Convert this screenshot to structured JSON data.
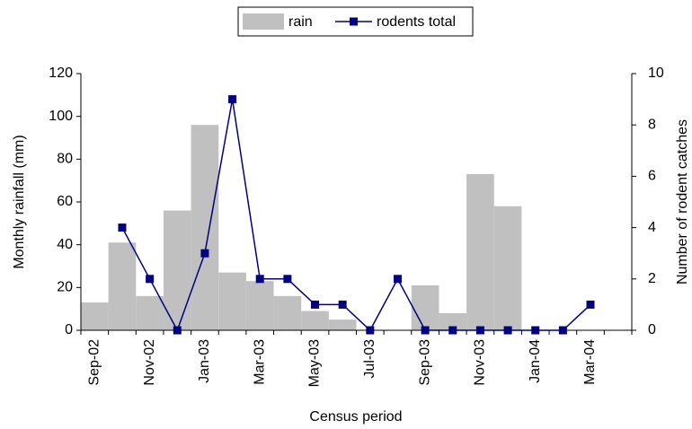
{
  "chart_data": {
    "type": "bar-line",
    "x_label": "Census period",
    "y_label": "Monthly rainfall (mm)",
    "y2_label": "Number of rodent catches",
    "categories": [
      "Sep-02",
      null,
      "Nov-02",
      null,
      "Jan-03",
      null,
      "Mar-03",
      null,
      "May-03",
      null,
      "Jul-03",
      null,
      "Sep-03",
      null,
      "Nov-03",
      null,
      "Jan-04",
      null,
      "Mar-04",
      null
    ],
    "series": [
      {
        "name": "rain",
        "type": "bar",
        "color": "#c0c0c0",
        "values": [
          13,
          41,
          16,
          56,
          96,
          27,
          23,
          16,
          9,
          5,
          null,
          null,
          21,
          8,
          73,
          58,
          null,
          null,
          null,
          null
        ]
      },
      {
        "name": "rodents total",
        "type": "line",
        "axis": "y2",
        "color": "#000080",
        "values": [
          null,
          4,
          2,
          0,
          3,
          9,
          2,
          2,
          1,
          1,
          0,
          2,
          0,
          0,
          0,
          0,
          0,
          0,
          1,
          null
        ]
      }
    ],
    "ylim": [
      0,
      120
    ],
    "yticks": [
      0,
      20,
      40,
      60,
      80,
      100,
      120
    ],
    "y2lim": [
      0,
      10
    ],
    "y2ticks": [
      0,
      2,
      4,
      6,
      8,
      10
    ],
    "legend": "top"
  }
}
